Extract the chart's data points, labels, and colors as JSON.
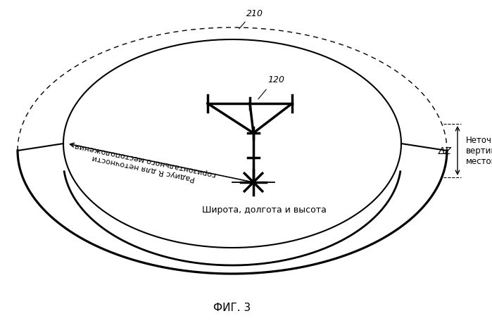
{
  "title": "ФИГ. 3",
  "label_210": "210",
  "label_120": "120",
  "label_radius": "Радиус R для неточности\nгоризонтального местоположения",
  "label_coords": "Широта, долгота и высота",
  "label_dz": "ΔZ",
  "label_vert": "Неточность\nвертикального\nместоположения",
  "bg_color": "#ffffff",
  "line_color": "#000000",
  "fig_width": 6.99,
  "fig_height": 4.6,
  "dpi": 100
}
